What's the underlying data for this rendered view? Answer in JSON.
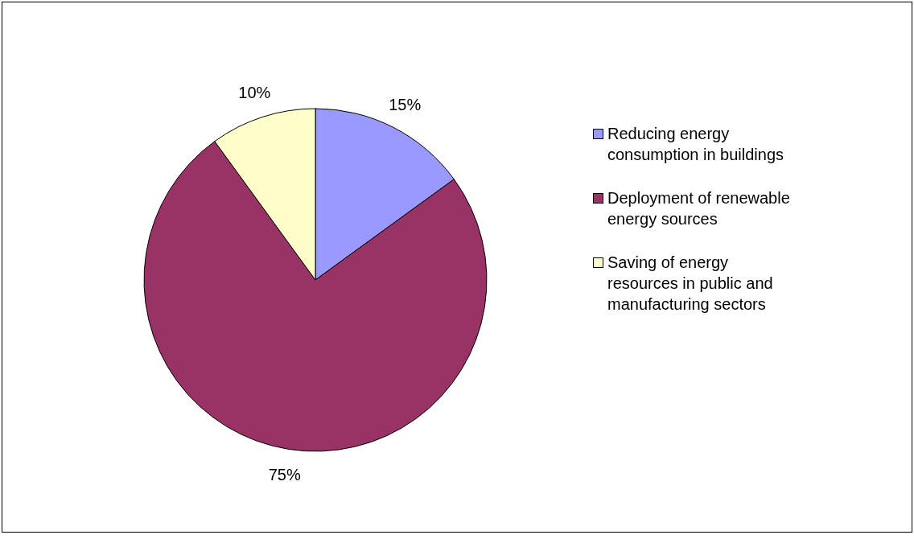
{
  "chart_data": {
    "type": "pie",
    "categories": [
      "Reducing energy consumption in buildings",
      "Deployment of renewable energy sources",
      "Saving of energy resources in public and manufacturing sectors"
    ],
    "values": [
      15,
      75,
      10
    ],
    "colors": [
      "#9999ff",
      "#993366",
      "#ffffcc"
    ],
    "value_labels": [
      "15%",
      "75%",
      "10%"
    ],
    "legend": "right"
  }
}
